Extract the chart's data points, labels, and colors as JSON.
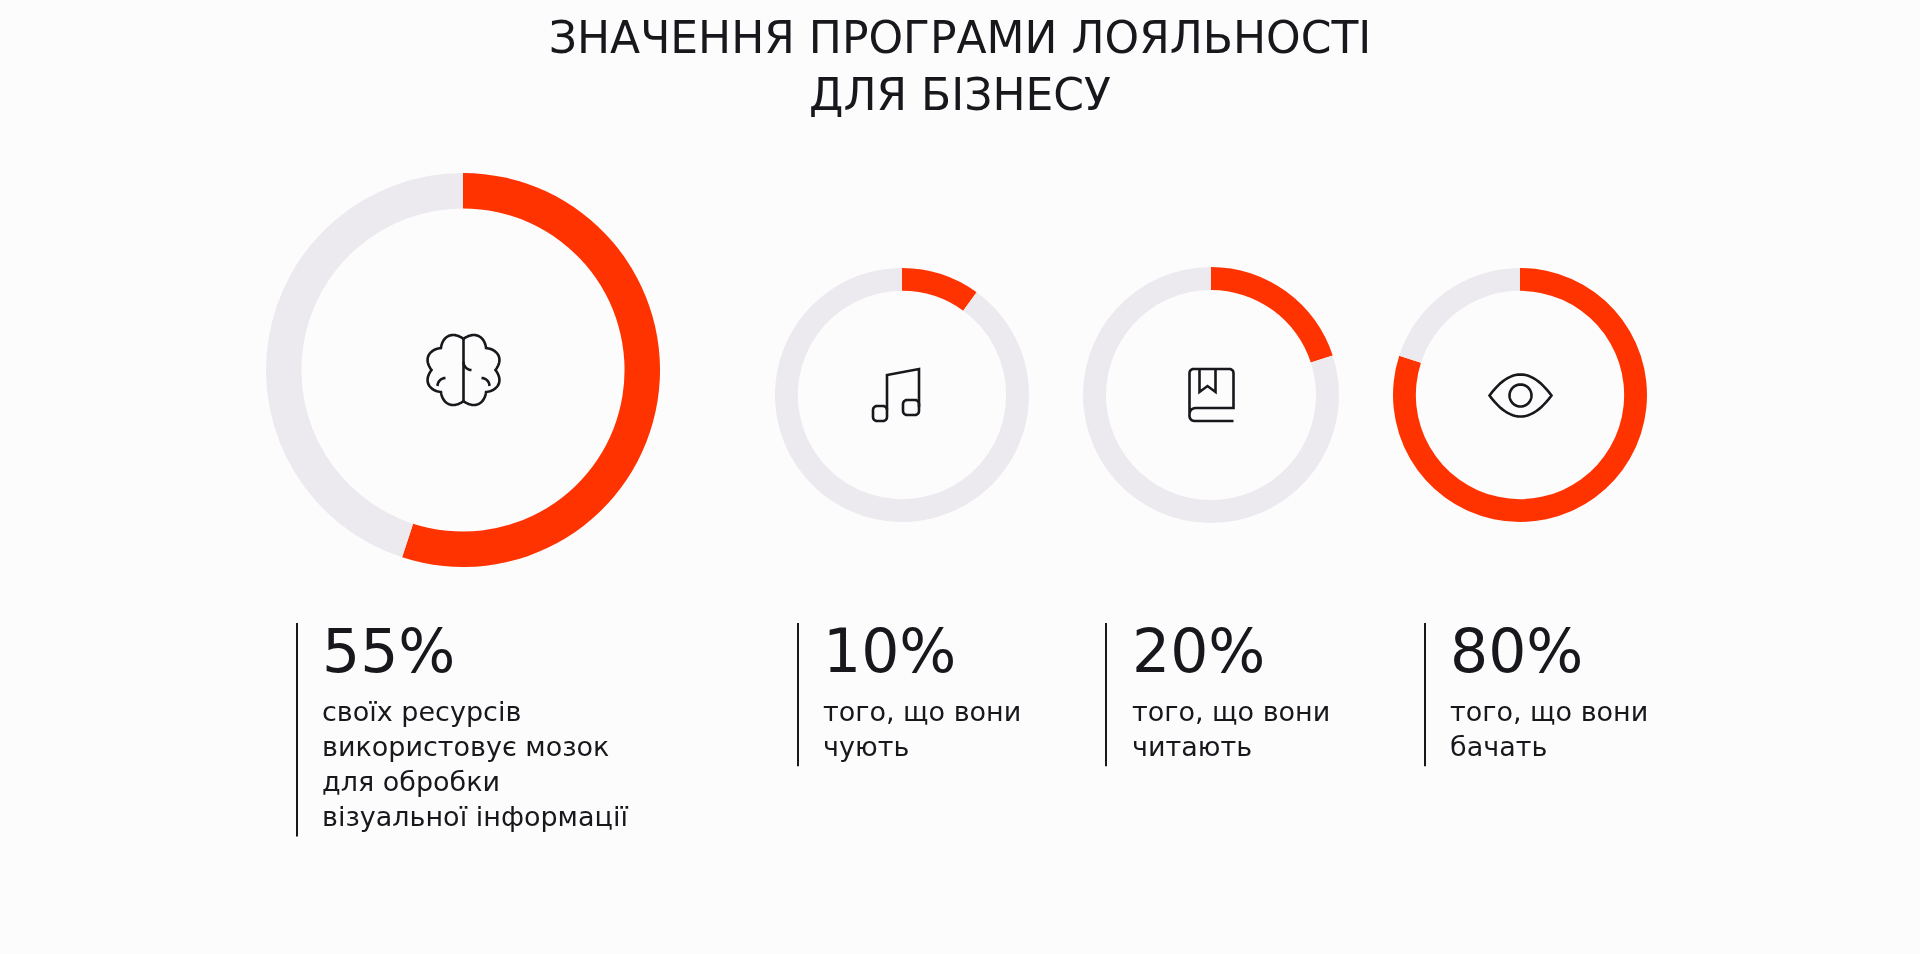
{
  "chart_data": [
    {
      "type": "donut",
      "title": "ЗНАЧЕННЯ ПРОГРАМИ ЛОЯЛЬНОСТІ\nДЛЯ БІЗНЕСУ",
      "categories": [
        null,
        null
      ],
      "values": [
        55,
        45
      ],
      "colors": [
        "#ff3300",
        "#eceaee"
      ],
      "annotations": [
        "55%",
        "своїх ресурсів\nвикористовує мозок\nдля обробки\nвізуальної інформації"
      ]
    },
    {
      "type": "donut",
      "categories": [
        null,
        null
      ],
      "values": [
        10,
        90
      ],
      "colors": [
        "#ff3300",
        "#eceaee"
      ],
      "annotations": [
        "10%",
        "того, що вони\nчують"
      ]
    },
    {
      "type": "donut",
      "categories": [
        null,
        null
      ],
      "values": [
        20,
        80
      ],
      "colors": [
        "#ff3300",
        "#eceaee"
      ],
      "annotations": [
        "20%",
        "того, що вони\nчитають"
      ]
    },
    {
      "type": "donut",
      "categories": [
        null,
        null
      ],
      "values": [
        80,
        20
      ],
      "colors": [
        "#ff3300",
        "#eceaee"
      ],
      "annotations": [
        "80%",
        "того, що вони\nбачать"
      ]
    }
  ]
}
